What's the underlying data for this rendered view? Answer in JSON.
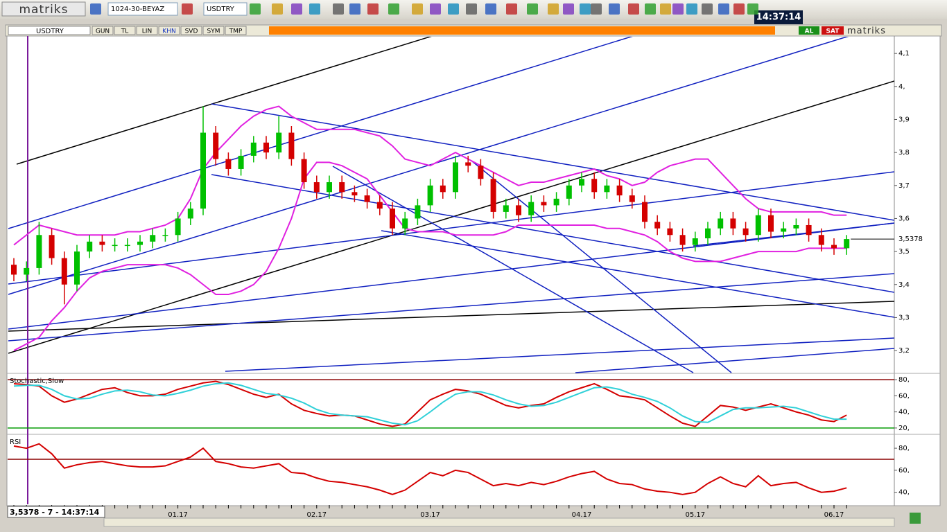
{
  "toolbar": {
    "logo": "matriks",
    "layout": "1024-30-BEYAZ",
    "symbol": "USDTRY",
    "clock": "14:37:14"
  },
  "chart_window": {
    "symbol": "USDTRY",
    "tabs": [
      "GUN",
      "TL",
      "LIN",
      "KHN",
      "SVD",
      "SYM",
      "TMP"
    ],
    "buy": "AL",
    "sell": "SAT",
    "brand": "matriks",
    "status": "3,5378 - 7 - 14:37:14"
  },
  "chart_data": [
    {
      "type": "candlestick",
      "categories": [
        null,
        null,
        null,
        null,
        null,
        null,
        null,
        null,
        null,
        null,
        null,
        null,
        null,
        "01.17",
        null,
        null,
        null,
        null,
        null,
        null,
        null,
        null,
        null,
        null,
        "02.17",
        null,
        null,
        null,
        null,
        null,
        null,
        null,
        null,
        "03.17",
        null,
        null,
        null,
        null,
        null,
        null,
        null,
        null,
        null,
        null,
        null,
        "04.17",
        null,
        null,
        null,
        null,
        null,
        null,
        null,
        null,
        "05.17",
        null,
        null,
        null,
        null,
        null,
        null,
        null,
        null,
        null,
        null,
        "06.17",
        null
      ],
      "open": [
        3.46,
        3.43,
        3.45,
        3.55,
        3.48,
        3.4,
        3.5,
        3.53,
        3.52,
        3.52,
        3.52,
        3.53,
        3.55,
        3.55,
        3.6,
        3.63,
        3.86,
        3.78,
        3.75,
        3.79,
        3.83,
        3.8,
        3.86,
        3.78,
        3.71,
        3.68,
        3.71,
        3.68,
        3.67,
        3.65,
        3.63,
        3.57,
        3.6,
        3.64,
        3.7,
        3.68,
        3.77,
        3.76,
        3.72,
        3.62,
        3.64,
        3.61,
        3.65,
        3.64,
        3.66,
        3.7,
        3.72,
        3.68,
        3.7,
        3.67,
        3.65,
        3.59,
        3.57,
        3.55,
        3.52,
        3.54,
        3.57,
        3.6,
        3.57,
        3.55,
        3.61,
        3.56,
        3.57,
        3.58,
        3.55,
        3.52,
        3.51
      ],
      "high": [
        3.48,
        3.47,
        3.59,
        3.57,
        3.5,
        3.52,
        3.55,
        3.55,
        3.54,
        3.54,
        3.55,
        3.57,
        3.57,
        3.62,
        3.65,
        3.94,
        3.88,
        3.8,
        3.81,
        3.85,
        3.85,
        3.91,
        3.88,
        3.8,
        3.73,
        3.73,
        3.73,
        3.7,
        3.69,
        3.67,
        3.65,
        3.62,
        3.66,
        3.72,
        3.72,
        3.79,
        3.79,
        3.78,
        3.74,
        3.66,
        3.66,
        3.67,
        3.67,
        3.68,
        3.72,
        3.74,
        3.74,
        3.72,
        3.72,
        3.69,
        3.67,
        3.61,
        3.59,
        3.57,
        3.56,
        3.59,
        3.62,
        3.62,
        3.59,
        3.63,
        3.63,
        3.59,
        3.6,
        3.6,
        3.57,
        3.54,
        3.55
      ],
      "low": [
        3.41,
        3.41,
        3.43,
        3.46,
        3.34,
        3.38,
        3.48,
        3.5,
        3.5,
        3.5,
        3.5,
        3.51,
        3.53,
        3.53,
        3.58,
        3.61,
        3.76,
        3.73,
        3.73,
        3.77,
        3.78,
        3.78,
        3.76,
        3.69,
        3.66,
        3.66,
        3.66,
        3.65,
        3.63,
        3.61,
        3.55,
        3.55,
        3.58,
        3.62,
        3.66,
        3.66,
        3.74,
        3.7,
        3.6,
        3.6,
        3.59,
        3.59,
        3.62,
        3.62,
        3.64,
        3.68,
        3.66,
        3.66,
        3.65,
        3.63,
        3.57,
        3.55,
        3.53,
        3.5,
        3.5,
        3.52,
        3.55,
        3.55,
        3.53,
        3.53,
        3.54,
        3.54,
        3.55,
        3.53,
        3.5,
        3.49,
        3.49
      ],
      "close": [
        3.43,
        3.45,
        3.55,
        3.48,
        3.4,
        3.5,
        3.53,
        3.52,
        3.52,
        3.52,
        3.53,
        3.55,
        3.55,
        3.6,
        3.63,
        3.86,
        3.78,
        3.75,
        3.79,
        3.83,
        3.8,
        3.86,
        3.78,
        3.71,
        3.68,
        3.71,
        3.68,
        3.67,
        3.65,
        3.63,
        3.57,
        3.6,
        3.64,
        3.7,
        3.68,
        3.77,
        3.76,
        3.72,
        3.62,
        3.64,
        3.61,
        3.65,
        3.64,
        3.66,
        3.7,
        3.72,
        3.68,
        3.7,
        3.67,
        3.65,
        3.59,
        3.57,
        3.55,
        3.52,
        3.54,
        3.57,
        3.6,
        3.57,
        3.55,
        3.61,
        3.56,
        3.57,
        3.58,
        3.55,
        3.52,
        3.51,
        3.5378
      ],
      "up_color": "#00c000",
      "down_color": "#d40000",
      "series": [
        {
          "color": "#e020e0",
          "values": [
            3.52,
            3.55,
            3.58,
            3.57,
            3.56,
            3.55,
            3.55,
            3.55,
            3.55,
            3.56,
            3.56,
            3.57,
            3.58,
            3.6,
            3.66,
            3.75,
            3.8,
            3.84,
            3.88,
            3.91,
            3.93,
            3.94,
            3.91,
            3.89,
            3.87,
            3.87,
            3.87,
            3.87,
            3.86,
            3.85,
            3.82,
            3.78,
            3.77,
            3.76,
            3.78,
            3.8,
            3.78,
            3.76,
            3.74,
            3.72,
            3.7,
            3.71,
            3.71,
            3.72,
            3.73,
            3.74,
            3.75,
            3.73,
            3.72,
            3.7,
            3.71,
            3.74,
            3.76,
            3.77,
            3.78,
            3.78,
            3.74,
            3.7,
            3.66,
            3.63,
            3.62,
            3.62,
            3.62,
            3.62,
            3.62,
            3.61,
            3.61
          ]
        },
        {
          "color": "#e020e0",
          "values": [
            3.2,
            3.22,
            3.24,
            3.29,
            3.33,
            3.38,
            3.42,
            3.44,
            3.45,
            3.46,
            3.46,
            3.46,
            3.46,
            3.45,
            3.43,
            3.4,
            3.37,
            3.37,
            3.38,
            3.4,
            3.44,
            3.51,
            3.6,
            3.72,
            3.77,
            3.77,
            3.76,
            3.74,
            3.72,
            3.67,
            3.62,
            3.57,
            3.56,
            3.56,
            3.56,
            3.55,
            3.55,
            3.55,
            3.55,
            3.56,
            3.58,
            3.58,
            3.58,
            3.58,
            3.58,
            3.58,
            3.58,
            3.57,
            3.57,
            3.56,
            3.55,
            3.53,
            3.5,
            3.48,
            3.47,
            3.47,
            3.47,
            3.48,
            3.49,
            3.5,
            3.5,
            3.5,
            3.5,
            3.51,
            3.51,
            3.51,
            3.51
          ]
        }
      ],
      "ylim": [
        3.133,
        4.157
      ],
      "yticks": [
        {
          "value": 4.1,
          "label": "4,1"
        },
        {
          "value": 4,
          "label": "4,"
        },
        {
          "value": 3.9,
          "label": "3,9"
        },
        {
          "value": 3.8,
          "label": "3,8"
        },
        {
          "value": 3.7,
          "label": "3,7"
        },
        {
          "value": 3.6,
          "label": "3,6"
        },
        {
          "value": 3.5,
          "label": "3,5"
        },
        {
          "value": 3.4,
          "label": "3,4"
        },
        {
          "value": 3.3,
          "label": "3,3"
        },
        {
          "value": 3.2,
          "label": "3,2"
        }
      ],
      "last_label": {
        "value": 3.5378,
        "label": "3,5378"
      }
    },
    {
      "type": "line",
      "title": "Stochastic,Slow",
      "series": [
        {
          "color": "#d40000",
          "values": [
            75,
            74,
            72,
            60,
            52,
            56,
            62,
            68,
            70,
            64,
            60,
            60,
            62,
            68,
            72,
            76,
            78,
            74,
            68,
            62,
            58,
            62,
            50,
            42,
            38,
            35,
            36,
            35,
            30,
            25,
            22,
            25,
            40,
            55,
            62,
            68,
            66,
            62,
            55,
            48,
            45,
            48,
            50,
            58,
            65,
            70,
            75,
            68,
            60,
            58,
            55,
            45,
            35,
            26,
            22,
            35,
            48,
            46,
            42,
            46,
            50,
            45,
            40,
            36,
            30,
            28,
            36
          ]
        },
        {
          "color": "#30d0d8",
          "values": [
            72,
            73,
            73,
            68,
            60,
            56,
            57,
            62,
            66,
            67,
            65,
            61,
            60,
            63,
            67,
            72,
            75,
            76,
            73,
            68,
            63,
            61,
            57,
            51,
            43,
            38,
            36,
            35,
            34,
            30,
            26,
            24,
            29,
            40,
            52,
            62,
            65,
            65,
            61,
            55,
            50,
            47,
            48,
            52,
            58,
            64,
            70,
            71,
            68,
            62,
            58,
            53,
            45,
            35,
            28,
            27,
            35,
            43,
            45,
            45,
            46,
            47,
            45,
            40,
            35,
            31,
            31
          ]
        }
      ],
      "reference_lines": [
        {
          "value": 80,
          "color": "#8b0000"
        },
        {
          "value": 20,
          "color": "#009a00"
        }
      ],
      "ylim": [
        13,
        87
      ],
      "yticks": [
        {
          "value": 80,
          "label": "80,"
        },
        {
          "value": 60,
          "label": "60,"
        },
        {
          "value": 40,
          "label": "40,"
        },
        {
          "value": 20,
          "label": "20,"
        }
      ]
    },
    {
      "type": "line",
      "title": "RSI",
      "series": [
        {
          "color": "#d40000",
          "values": [
            82,
            80,
            84,
            75,
            62,
            65,
            67,
            68,
            66,
            64,
            63,
            63,
            64,
            68,
            72,
            80,
            68,
            66,
            63,
            62,
            64,
            66,
            58,
            57,
            53,
            50,
            49,
            47,
            45,
            42,
            38,
            42,
            50,
            58,
            55,
            60,
            58,
            52,
            46,
            48,
            46,
            49,
            47,
            50,
            54,
            57,
            59,
            52,
            48,
            47,
            43,
            41,
            40,
            38,
            40,
            48,
            54,
            48,
            45,
            55,
            46,
            48,
            49,
            44,
            40,
            41,
            44
          ]
        }
      ],
      "reference_lines": [
        {
          "value": 70,
          "color": "#8b0000"
        }
      ],
      "ylim": [
        31,
        92
      ],
      "yticks": [
        {
          "value": 80,
          "label": "80,"
        },
        {
          "value": 60,
          "label": "60,"
        },
        {
          "value": 40,
          "label": "40,"
        }
      ]
    }
  ]
}
